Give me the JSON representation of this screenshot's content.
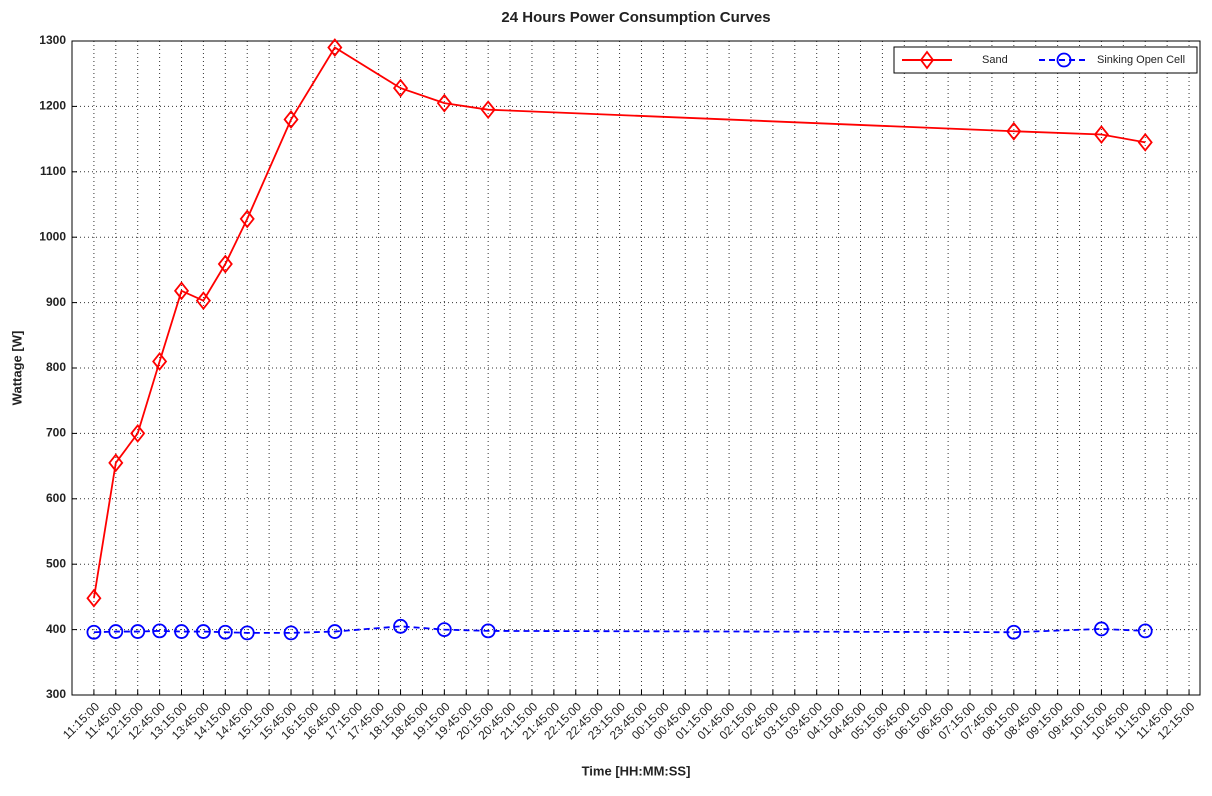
{
  "chart_data": {
    "type": "line",
    "title": "24 Hours Power Consumption Curves",
    "xlabel": "Time [HH:MM:SS]",
    "ylabel": "Wattage [W]",
    "x": [
      0,
      30,
      60,
      90,
      120,
      150,
      180,
      210,
      270,
      330,
      420,
      480,
      540,
      1260,
      1380,
      1440
    ],
    "series": [
      {
        "name": "Sand",
        "color": "#ff0000",
        "marker": "diamond",
        "linestyle": "solid",
        "values": [
          448,
          655,
          700,
          810,
          918,
          903,
          959,
          1028,
          1180,
          1290,
          1228,
          1205,
          1195,
          1162,
          1157,
          1145
        ]
      },
      {
        "name": "Sinking Open Cell",
        "color": "#0000ff",
        "marker": "circle",
        "linestyle": "dashed",
        "values": [
          396,
          397,
          397,
          398,
          397,
          397,
          396,
          395,
          395,
          397,
          405,
          400,
          398,
          396,
          401,
          398
        ]
      }
    ],
    "xlim": [
      -30,
      1515
    ],
    "xticks": [
      {
        "value": 0,
        "label": "11:15:00"
      },
      {
        "value": 30,
        "label": "11:45:00"
      },
      {
        "value": 60,
        "label": "12:15:00"
      },
      {
        "value": 90,
        "label": "12:45:00"
      },
      {
        "value": 120,
        "label": "13:15:00"
      },
      {
        "value": 150,
        "label": "13:45:00"
      },
      {
        "value": 180,
        "label": "14:15:00"
      },
      {
        "value": 210,
        "label": "14:45:00"
      },
      {
        "value": 240,
        "label": "15:15:00"
      },
      {
        "value": 270,
        "label": "15:45:00"
      },
      {
        "value": 300,
        "label": "16:15:00"
      },
      {
        "value": 330,
        "label": "16:45:00"
      },
      {
        "value": 360,
        "label": "17:15:00"
      },
      {
        "value": 390,
        "label": "17:45:00"
      },
      {
        "value": 420,
        "label": "18:15:00"
      },
      {
        "value": 450,
        "label": "18:45:00"
      },
      {
        "value": 480,
        "label": "19:15:00"
      },
      {
        "value": 510,
        "label": "19:45:00"
      },
      {
        "value": 540,
        "label": "20:15:00"
      },
      {
        "value": 570,
        "label": "20:45:00"
      },
      {
        "value": 600,
        "label": "21:15:00"
      },
      {
        "value": 630,
        "label": "21:45:00"
      },
      {
        "value": 660,
        "label": "22:15:00"
      },
      {
        "value": 690,
        "label": "22:45:00"
      },
      {
        "value": 720,
        "label": "23:15:00"
      },
      {
        "value": 750,
        "label": "23:45:00"
      },
      {
        "value": 780,
        "label": "00:15:00"
      },
      {
        "value": 810,
        "label": "00:45:00"
      },
      {
        "value": 840,
        "label": "01:15:00"
      },
      {
        "value": 870,
        "label": "01:45:00"
      },
      {
        "value": 900,
        "label": "02:15:00"
      },
      {
        "value": 930,
        "label": "02:45:00"
      },
      {
        "value": 960,
        "label": "03:15:00"
      },
      {
        "value": 990,
        "label": "03:45:00"
      },
      {
        "value": 1020,
        "label": "04:15:00"
      },
      {
        "value": 1050,
        "label": "04:45:00"
      },
      {
        "value": 1080,
        "label": "05:15:00"
      },
      {
        "value": 1110,
        "label": "05:45:00"
      },
      {
        "value": 1140,
        "label": "06:15:00"
      },
      {
        "value": 1170,
        "label": "06:45:00"
      },
      {
        "value": 1200,
        "label": "07:15:00"
      },
      {
        "value": 1230,
        "label": "07:45:00"
      },
      {
        "value": 1260,
        "label": "08:15:00"
      },
      {
        "value": 1290,
        "label": "08:45:00"
      },
      {
        "value": 1320,
        "label": "09:15:00"
      },
      {
        "value": 1350,
        "label": "09:45:00"
      },
      {
        "value": 1380,
        "label": "10:15:00"
      },
      {
        "value": 1410,
        "label": "10:45:00"
      },
      {
        "value": 1440,
        "label": "11:15:00"
      },
      {
        "value": 1470,
        "label": "11:45:00"
      },
      {
        "value": 1500,
        "label": "12:15:00"
      }
    ],
    "ylim": [
      300,
      1300
    ],
    "yticks": [
      300,
      400,
      500,
      600,
      700,
      800,
      900,
      1000,
      1100,
      1200,
      1300
    ],
    "grid": true,
    "legend": "upper right"
  }
}
